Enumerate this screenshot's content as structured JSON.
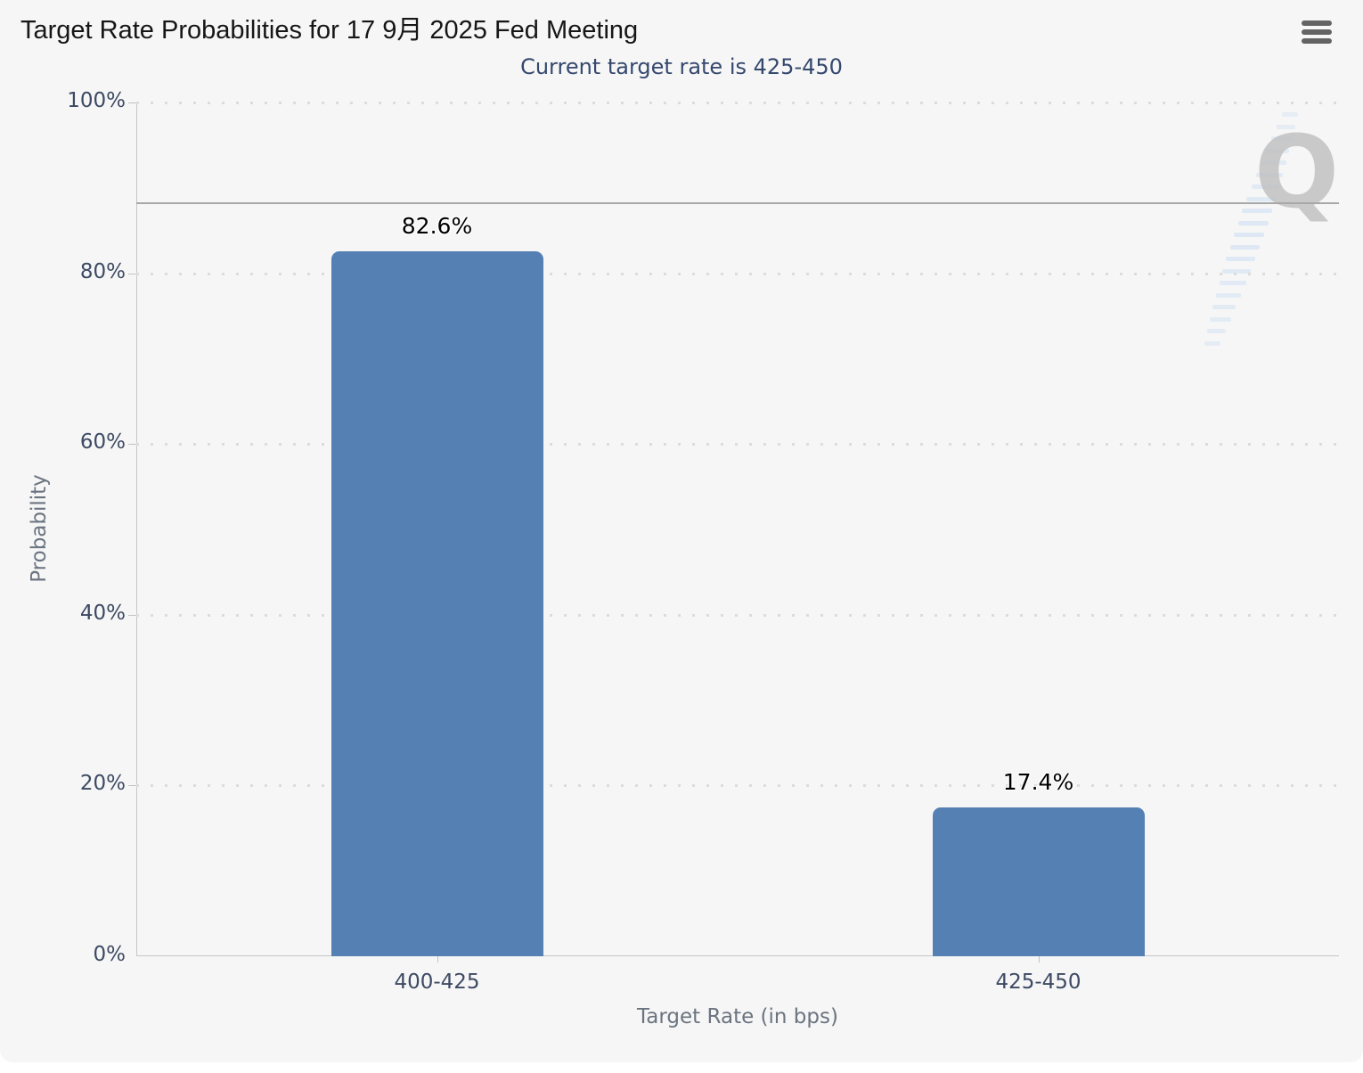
{
  "header": {
    "title": "Target Rate Probabilities for 17 9月 2025 Fed Meeting",
    "menu_icon": "hamburger-icon"
  },
  "chart_data": {
    "type": "bar",
    "title": "Target Rate Probabilities for 17 9月 2025 Fed Meeting",
    "subtitle": "Current target rate is 425-450",
    "categories": [
      "400-425",
      "425-450"
    ],
    "values": [
      82.6,
      17.4
    ],
    "data_labels": [
      "82.6%",
      "17.4%"
    ],
    "xlabel": "Target Rate (in bps)",
    "ylabel": "Probability",
    "ylim": [
      0,
      100
    ],
    "yticks": [
      "0%",
      "20%",
      "40%",
      "60%",
      "80%",
      "100%"
    ],
    "grid": "dotted horizontal gridlines at each 20%",
    "legend": "none",
    "plot_line_y": 88.2,
    "bar_color": "#5480b4"
  },
  "watermark": {
    "letter": "Q"
  },
  "colors": {
    "panel_bg": "#f6f6f6",
    "bar": "#5480b4",
    "subtitle_text": "#35486e",
    "axis_label_text": "#3d4a63",
    "axis_title_text": "#6b7480",
    "plot_line": "#a8a8a8"
  }
}
